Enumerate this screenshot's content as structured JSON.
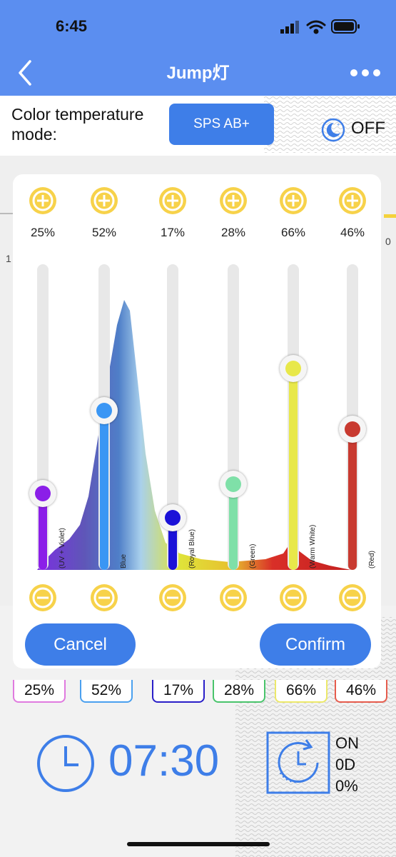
{
  "status_bar": {
    "time": "6:45"
  },
  "nav": {
    "title": "Jump灯",
    "back_icon": "back-chevron-icon",
    "more_icon": "more-dots-icon"
  },
  "header": {
    "mode_label": "Color temperature mode:",
    "mode_button": "SPS AB+",
    "moon_icon": "moon-icon",
    "off_label": "OFF"
  },
  "background": {
    "stray_left": "1",
    "stray_right": "0"
  },
  "dialog": {
    "channels": [
      {
        "percent": "25%",
        "level": 0.25,
        "label": "(UV + Violet)",
        "color": "#8b1fe8"
      },
      {
        "percent": "52%",
        "level": 0.52,
        "label": "Blue",
        "color": "#3a96f4"
      },
      {
        "percent": "17%",
        "level": 0.17,
        "label": "(Royal Blue)",
        "color": "#1b12d8"
      },
      {
        "percent": "28%",
        "level": 0.28,
        "label": "(Green)",
        "color": "#7fe0a8"
      },
      {
        "percent": "66%",
        "level": 0.66,
        "label": "(Warm White)",
        "color": "#e8e84a"
      },
      {
        "percent": "46%",
        "level": 0.46,
        "label": "(Red)",
        "color": "#c83a30"
      }
    ],
    "cancel_label": "Cancel",
    "confirm_label": "Confirm"
  },
  "percent_boxes": [
    {
      "text": "25%",
      "color": "#e07adf"
    },
    {
      "text": "52%",
      "color": "#4aa0ef"
    },
    {
      "text": "17%",
      "color": "#2a1fc8"
    },
    {
      "text": "28%",
      "color": "#49c46b"
    },
    {
      "text": "66%",
      "color": "#ece86a"
    },
    {
      "text": "46%",
      "color": "#e65b4c"
    }
  ],
  "bottom": {
    "clock_icon": "clock-icon",
    "time": "07:30",
    "schedule_icon": "schedule-clock-icon",
    "on_label": "ON",
    "day_label": "0D",
    "pct_label": "0%"
  }
}
